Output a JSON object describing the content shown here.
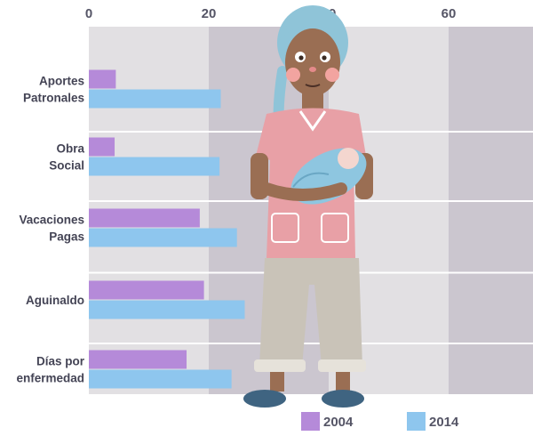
{
  "chart_data": {
    "type": "bar",
    "orientation": "horizontal",
    "categories": [
      [
        "Aportes",
        "Patronales"
      ],
      [
        "Obra",
        "Social"
      ],
      [
        "Vacaciones",
        "Pagas"
      ],
      [
        "Aguinaldo"
      ],
      [
        "Días por",
        "enfermedad"
      ]
    ],
    "series": [
      {
        "name": "2004",
        "color": "#b58ad9",
        "values": [
          4.5,
          4.3,
          18.5,
          19.2,
          16.3
        ]
      },
      {
        "name": "2014",
        "color": "#8ec6ee",
        "values": [
          22.0,
          21.8,
          24.7,
          26.0,
          23.8
        ]
      }
    ],
    "x_ticks": [
      "0",
      "20",
      "40",
      "60"
    ],
    "xlim": [
      0,
      80
    ],
    "grid": true,
    "legend_position": "bottom-right",
    "band_colors": [
      "#e2e0e3",
      "#cbc6cf"
    ],
    "illustration": "woman-holding-baby"
  }
}
